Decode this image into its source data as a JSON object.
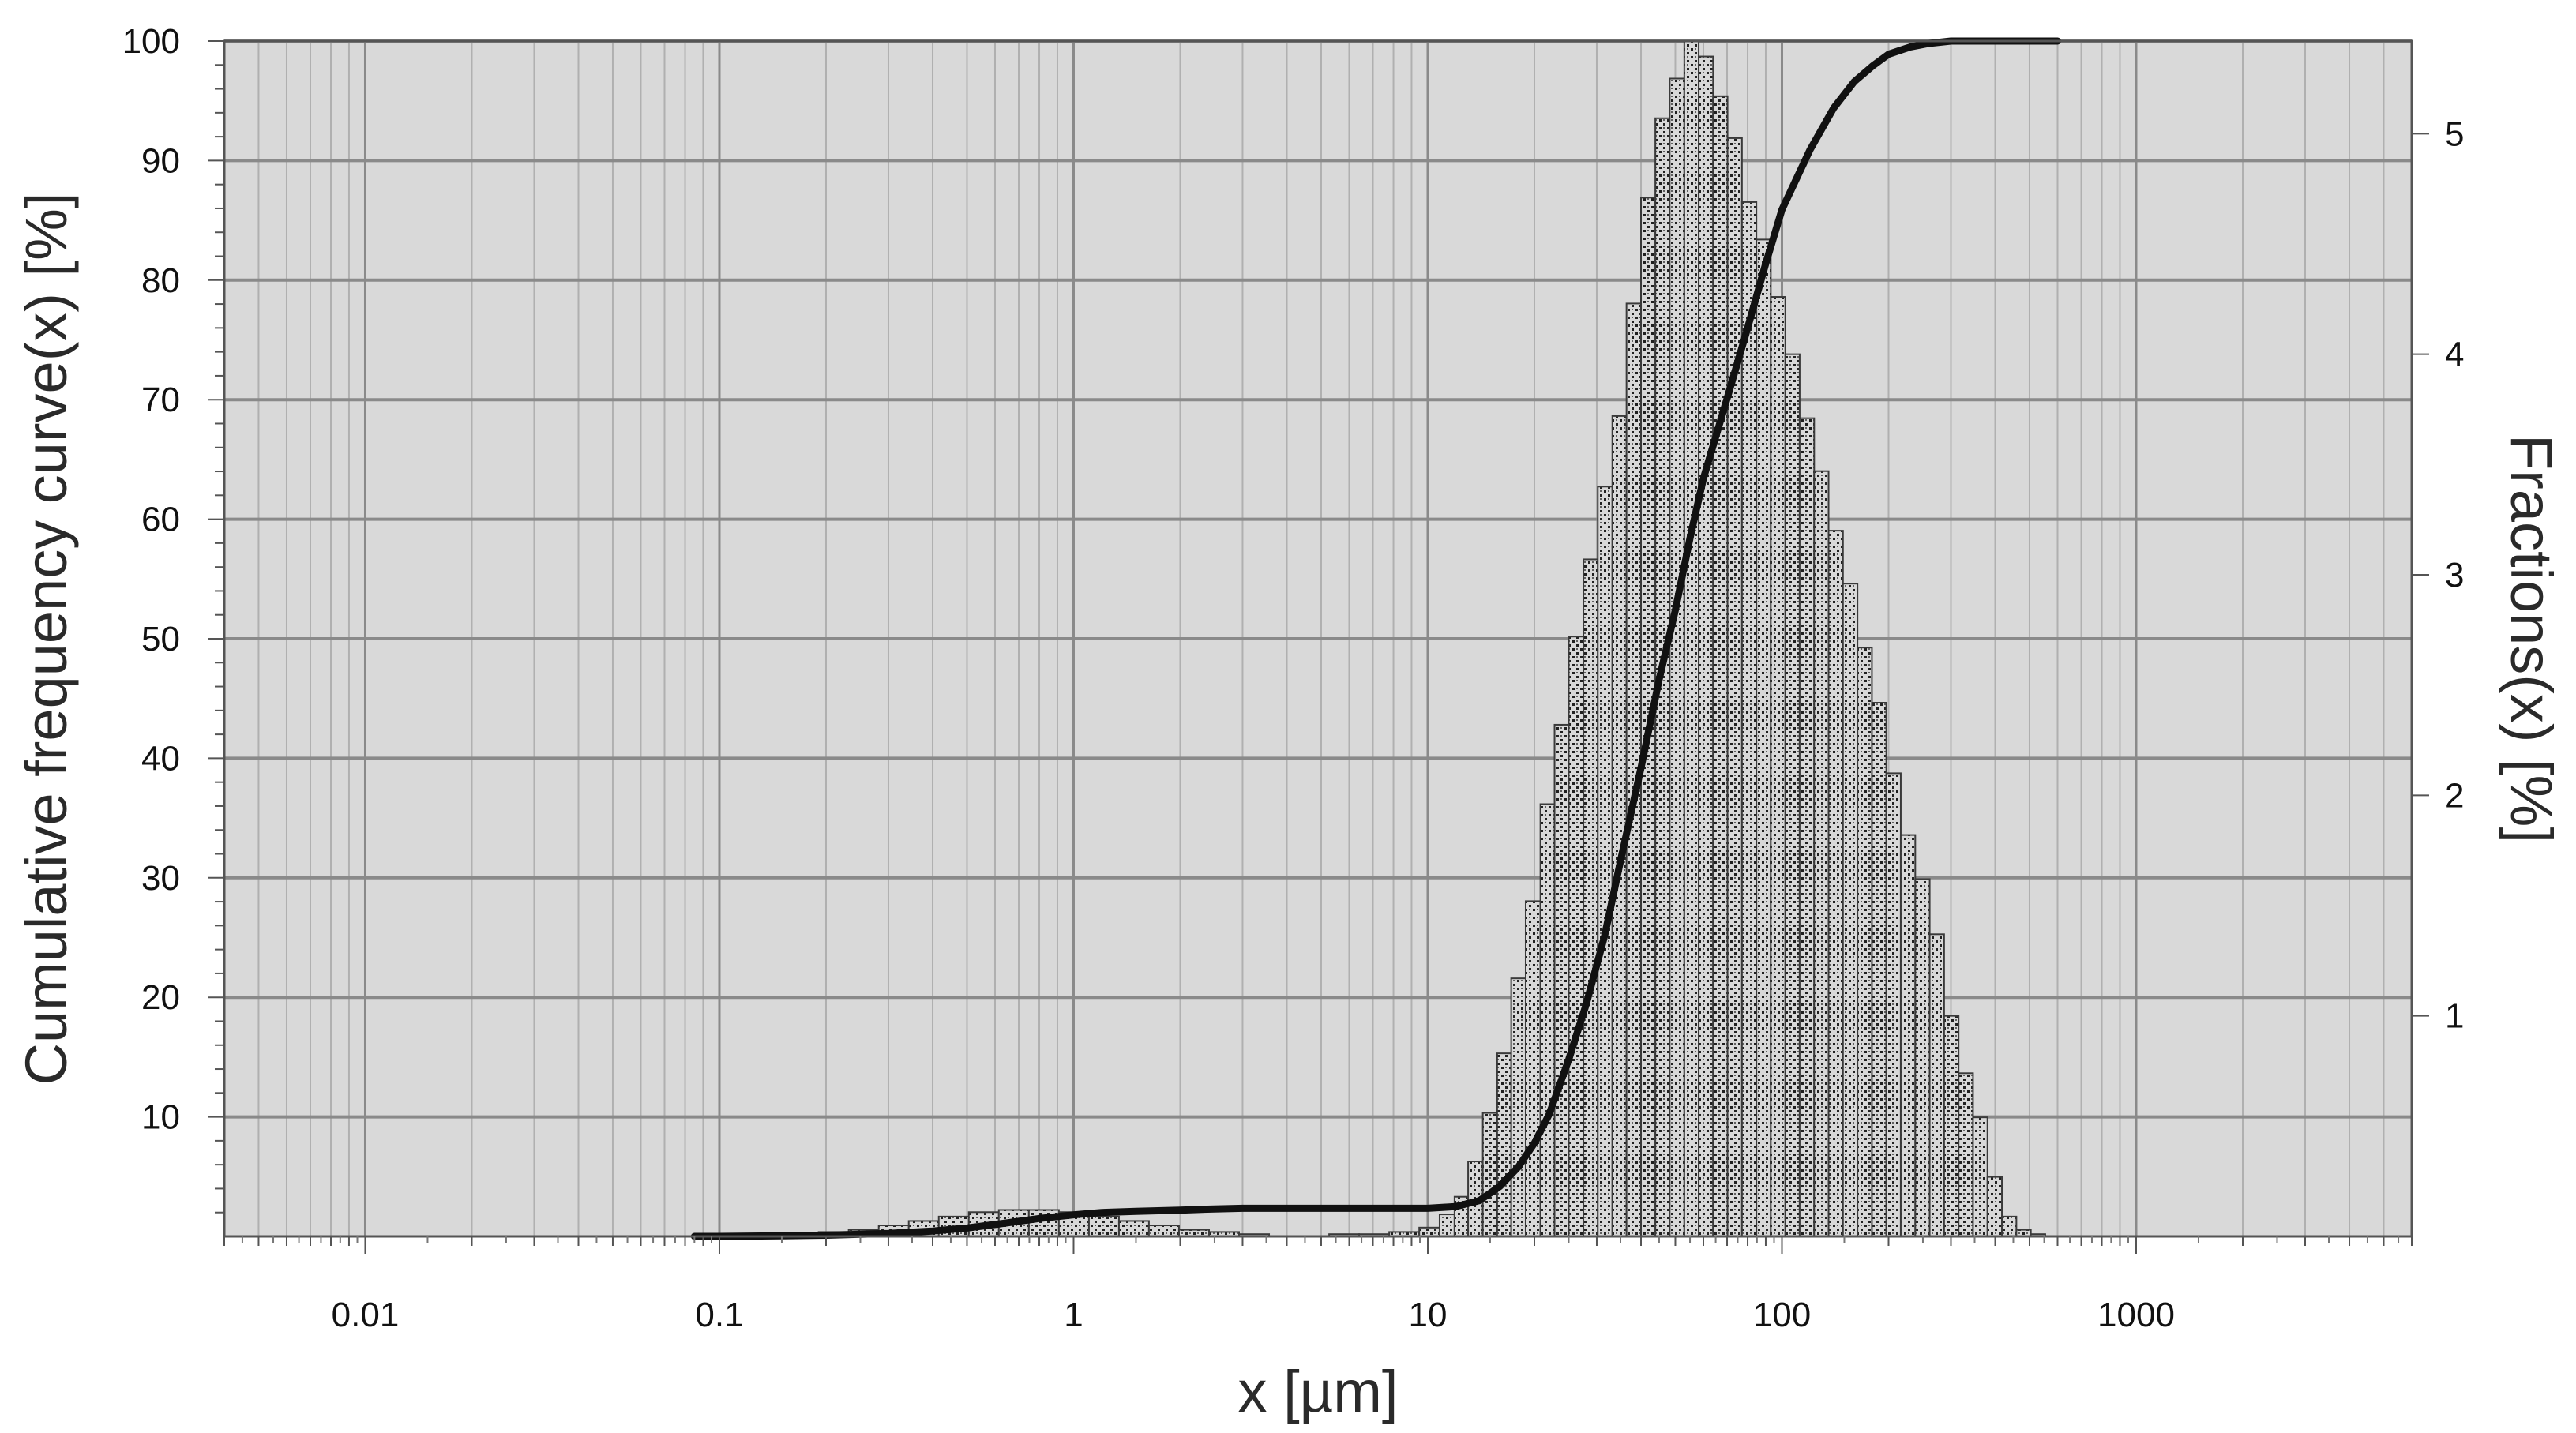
{
  "chart_data": {
    "type": "bar",
    "title": "",
    "xlabel": "x [µm]",
    "ylabel": "Cumulative frequency curve(x) [%]",
    "y2label": "Fractions(x) [%]",
    "xscale": "log",
    "xlim": [
      0.004,
      6000
    ],
    "ylim": [
      0,
      100
    ],
    "y2lim": [
      0,
      5.42
    ],
    "grid": true,
    "x_ticks": [
      "0.01",
      "0.1",
      "1",
      "10",
      "100",
      "1000"
    ],
    "x_tick_values": [
      0.01,
      0.1,
      1,
      10,
      100,
      1000
    ],
    "y_ticks": [
      "10",
      "20",
      "30",
      "40",
      "50",
      "60",
      "70",
      "80",
      "90",
      "100"
    ],
    "y_tick_values": [
      10,
      20,
      30,
      40,
      50,
      60,
      70,
      80,
      90,
      100
    ],
    "y2_ticks": [
      "1",
      "2",
      "3",
      "4",
      "5"
    ],
    "y2_tick_values": [
      1,
      2,
      3,
      4,
      5
    ],
    "colors": {
      "plot_background": "#d9d9d9",
      "grid_major": "#8a8a8a",
      "grid_minor": "#b0b0b0",
      "bar_fill": "#d8d8d8",
      "bar_stipple": "#202020",
      "bar_outline": "#3a3a3a",
      "curve": "#111111"
    },
    "series": [
      {
        "name": "Fractions(x)",
        "axis": "right",
        "kind": "bar",
        "x_left": [
          0.04,
          0.0486,
          0.0591,
          0.0718,
          0.0873,
          0.1061,
          0.129,
          0.1568,
          0.1906,
          0.2317,
          0.2817,
          0.3424,
          0.4162,
          0.5059,
          0.615,
          0.7476,
          0.9088,
          1.105,
          1.343,
          1.632,
          1.984,
          2.412,
          2.932,
          3.564,
          4.333,
          5.267,
          6.402,
          7.783,
          9.461,
          10.8,
          11.9,
          13.0,
          14.3,
          15.7,
          17.2,
          18.9,
          20.8,
          22.8,
          25.0,
          27.5,
          30.2,
          33.2,
          36.4,
          40.0,
          43.9,
          48.2,
          53.0,
          58.2,
          63.9,
          70.2,
          77.1,
          84.7,
          93.0,
          102.2,
          112.2,
          123.3,
          135.4,
          148.7,
          163.4,
          179.5,
          197.1,
          216.5,
          237.9,
          261.3,
          287.0,
          315.3,
          346.3,
          380.4,
          417.9,
          459.1,
          504.3,
          554.0,
          608.5,
          668.4,
          734.3,
          806.6,
          886.0,
          973.3,
          1069.2
        ],
        "x_right": [
          0.0486,
          0.0591,
          0.0718,
          0.0873,
          0.1061,
          0.129,
          0.1568,
          0.1906,
          0.2317,
          0.2817,
          0.3424,
          0.4162,
          0.5059,
          0.615,
          0.7476,
          0.9088,
          1.105,
          1.343,
          1.632,
          1.984,
          2.412,
          2.932,
          3.564,
          4.333,
          5.267,
          6.402,
          7.783,
          9.461,
          10.8,
          11.9,
          13.0,
          14.3,
          15.7,
          17.2,
          18.9,
          20.8,
          22.8,
          25.0,
          27.5,
          30.2,
          33.2,
          36.4,
          40.0,
          43.9,
          48.2,
          53.0,
          58.2,
          63.9,
          70.2,
          77.1,
          84.7,
          93.0,
          102.2,
          112.2,
          123.3,
          135.4,
          148.7,
          163.4,
          179.5,
          197.1,
          216.5,
          237.9,
          261.3,
          287.0,
          315.3,
          346.3,
          380.4,
          417.9,
          459.1,
          504.3,
          554.0,
          608.5,
          668.4,
          734.3,
          806.6,
          886.0,
          973.3,
          1069.2,
          1175.0
        ],
        "values": [
          0.0,
          0.0,
          0.0,
          0.0,
          0.0,
          0.0,
          0.01,
          0.01,
          0.02,
          0.03,
          0.05,
          0.07,
          0.09,
          0.11,
          0.12,
          0.12,
          0.11,
          0.09,
          0.07,
          0.05,
          0.03,
          0.02,
          0.01,
          0.0,
          0.0,
          0.01,
          0.01,
          0.02,
          0.04,
          0.1,
          0.18,
          0.34,
          0.56,
          0.83,
          1.17,
          1.52,
          1.96,
          2.32,
          2.72,
          3.07,
          3.4,
          3.72,
          4.23,
          4.71,
          5.07,
          5.25,
          5.42,
          5.35,
          5.17,
          4.98,
          4.69,
          4.52,
          4.26,
          4.0,
          3.71,
          3.47,
          3.2,
          2.96,
          2.67,
          2.42,
          2.1,
          1.82,
          1.62,
          1.37,
          1.0,
          0.74,
          0.54,
          0.27,
          0.09,
          0.03,
          0.01,
          0.0,
          0.0,
          0.0,
          0.0,
          0.0,
          0.0,
          0.0,
          0.0
        ]
      },
      {
        "name": "Cumulative frequency curve(x)",
        "axis": "left",
        "kind": "line",
        "x": [
          0.085,
          0.1,
          0.15,
          0.2,
          0.3,
          0.4,
          0.5,
          0.6,
          0.8,
          1.0,
          1.2,
          1.5,
          2.0,
          2.5,
          3.0,
          5.0,
          8.0,
          10.0,
          12.0,
          14.0,
          16.0,
          18.0,
          20.0,
          22.0,
          25.0,
          28.0,
          31.6,
          35.0,
          40.0,
          45.0,
          50.0,
          55.0,
          60.0,
          70.0,
          80.0,
          90.0,
          100.0,
          120.0,
          140.0,
          160.0,
          180.0,
          200.0,
          230.0,
          260.0,
          300.0,
          350.0,
          400.0,
          600.0
        ],
        "y": [
          0.0,
          0.0,
          0.05,
          0.1,
          0.25,
          0.45,
          0.7,
          1.0,
          1.5,
          1.8,
          2.0,
          2.1,
          2.2,
          2.3,
          2.35,
          2.35,
          2.35,
          2.35,
          2.5,
          3.0,
          4.2,
          5.8,
          7.8,
          10.2,
          14.8,
          19.4,
          25.2,
          31.4,
          39.2,
          46.6,
          52.4,
          58.4,
          63.4,
          70.1,
          76.0,
          81.4,
          85.9,
          90.9,
          94.4,
          96.6,
          97.9,
          98.9,
          99.5,
          99.8,
          100.0,
          100.0,
          100.0,
          100.0
        ]
      }
    ]
  }
}
